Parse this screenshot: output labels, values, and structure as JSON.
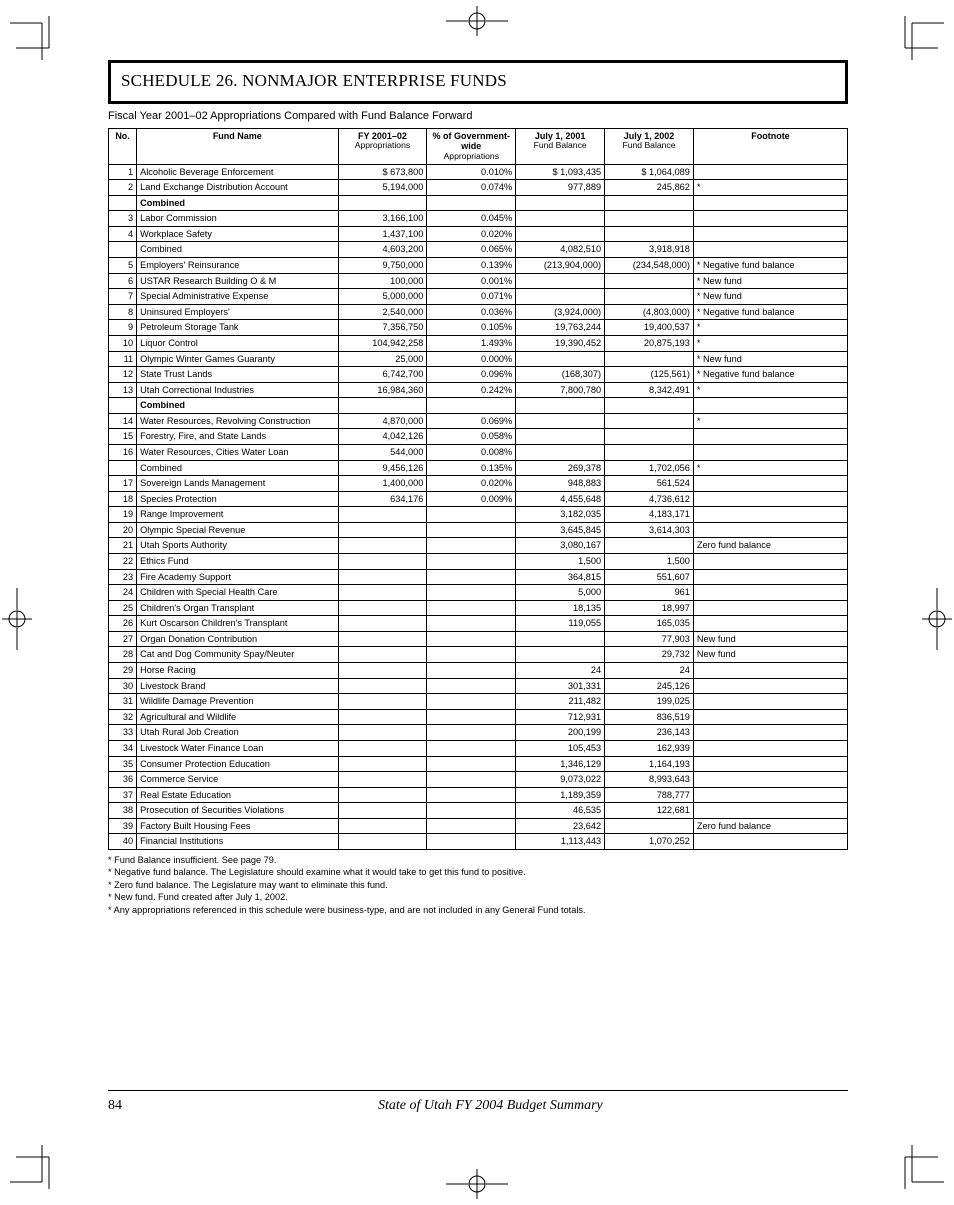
{
  "title": "SCHEDULE 26. NONMAJOR ENTERPRISE FUNDS",
  "subtitle": "Fiscal Year 2001–02 Appropriations Compared with Fund Balance Forward",
  "table": {
    "headers": {
      "no": "No.",
      "name": "Fund Name",
      "fy": {
        "main": "FY 2001–02",
        "sub": "Appropriations"
      },
      "pct": {
        "main": "% of Government-wide",
        "sub": "Appropriations"
      },
      "jul01": {
        "main": "July 1, 2001",
        "sub": "Fund Balance"
      },
      "jul02": {
        "main": "July 1, 2002",
        "sub": "Fund Balance"
      },
      "fn": "Footnote"
    },
    "rows": [
      {
        "no": "1",
        "name": "Alcoholic Beverage Enforcement",
        "fy": "$    673,800",
        "pct": "0.010%",
        "jul01": "$    1,093,435",
        "jul02": "$    1,064,089",
        "fn": "",
        "ast": ""
      },
      {
        "no": "2",
        "name": "Land Exchange Distribution Account",
        "fy": "5,194,000",
        "pct": "0.074%",
        "jul01": "977,889",
        "jul02": "245,862",
        "fn": "",
        "ast": "*"
      },
      {
        "no": "",
        "name": "Combined",
        "fy": "",
        "pct": "",
        "jul01": "",
        "jul02": "",
        "fn": "",
        "ast": "",
        "group": "head"
      },
      {
        "no": "3",
        "name": "Labor Commission",
        "fy": "3,166,100",
        "pct": "0.045%",
        "jul01": "",
        "jul02": "",
        "fn": "",
        "ast": ""
      },
      {
        "no": "4",
        "name": "Workplace Safety",
        "fy": "1,437,100",
        "pct": "0.020%",
        "jul01": "",
        "jul02": "",
        "fn": "",
        "ast": ""
      },
      {
        "no": "",
        "name": "Combined",
        "fy": "4,603,200",
        "pct": "0.065%",
        "jul01": "4,082,510",
        "jul02": "3,918,918",
        "fn": "",
        "ast": "",
        "group": "total"
      },
      {
        "no": "5",
        "name": "Employers' Reinsurance",
        "fy": "9,750,000",
        "pct": "0.139%",
        "jul01": "(213,904,000)",
        "jul02": "(234,548,000)",
        "fn": "Negative fund balance",
        "ast": "*"
      },
      {
        "no": "6",
        "name": "USTAR Research Building O & M",
        "fy": "100,000",
        "pct": "0.001%",
        "jul01": "",
        "jul02": "",
        "fn": "New fund",
        "ast": "*"
      },
      {
        "no": "7",
        "name": "Special Administrative Expense",
        "fy": "5,000,000",
        "pct": "0.071%",
        "jul01": "",
        "jul02": "",
        "fn": "New fund",
        "ast": "*"
      },
      {
        "no": "8",
        "name": "Uninsured Employers'",
        "fy": "2,540,000",
        "pct": "0.036%",
        "jul01": "(3,924,000)",
        "jul02": "(4,803,000)",
        "fn": "Negative fund balance",
        "ast": "*"
      },
      {
        "no": "9",
        "name": "Petroleum Storage Tank",
        "fy": "7,356,750",
        "pct": "0.105%",
        "jul01": "19,763,244",
        "jul02": "19,400,537",
        "fn": "",
        "ast": "*"
      },
      {
        "no": "10",
        "name": "Liquor Control",
        "fy": "104,942,258",
        "pct": "1.493%",
        "jul01": "19,390,452",
        "jul02": "20,875,193",
        "fn": "",
        "ast": "*"
      },
      {
        "no": "11",
        "name": "Olympic Winter Games Guaranty",
        "fy": "25,000",
        "pct": "0.000%",
        "jul01": "",
        "jul02": "",
        "fn": "New fund",
        "ast": "*"
      },
      {
        "no": "12",
        "name": "State Trust Lands",
        "fy": "6,742,700",
        "pct": "0.096%",
        "jul01": "(168,307)",
        "jul02": "(125,561)",
        "fn": "Negative fund balance",
        "ast": "*"
      },
      {
        "no": "13",
        "name": "Utah Correctional Industries",
        "fy": "16,984,360",
        "pct": "0.242%",
        "jul01": "7,800,780",
        "jul02": "8,342,491",
        "fn": "",
        "ast": "*"
      },
      {
        "no": "",
        "name": "Combined",
        "fy": "",
        "pct": "",
        "jul01": "",
        "jul02": "",
        "fn": "",
        "ast": "",
        "group": "head"
      },
      {
        "no": "14",
        "name": "Water Resources, Revolving Construction",
        "fy": "4,870,000",
        "pct": "0.069%",
        "jul01": "",
        "jul02": "",
        "fn": "",
        "ast": "*"
      },
      {
        "no": "15",
        "name": "Forestry, Fire, and State Lands",
        "fy": "4,042,126",
        "pct": "0.058%",
        "jul01": "",
        "jul02": "",
        "fn": "",
        "ast": ""
      },
      {
        "no": "16",
        "name": "Water Resources, Cities Water Loan",
        "fy": "544,000",
        "pct": "0.008%",
        "jul01": "",
        "jul02": "",
        "fn": "",
        "ast": ""
      },
      {
        "no": "",
        "name": "Combined",
        "fy": "9,456,126",
        "pct": "0.135%",
        "jul01": "269,378",
        "jul02": "1,702,056",
        "fn": "",
        "ast": "*",
        "group": "total"
      },
      {
        "no": "17",
        "name": "Sovereign Lands Management",
        "fy": "1,400,000",
        "pct": "0.020%",
        "jul01": "948,883",
        "jul02": "561,524",
        "fn": "",
        "ast": ""
      },
      {
        "no": "18",
        "name": "Species Protection",
        "fy": "634,176",
        "pct": "0.009%",
        "jul01": "4,455,648",
        "jul02": "4,736,612",
        "fn": "",
        "ast": ""
      },
      {
        "no": "19",
        "name": "Range Improvement",
        "fy": "",
        "pct": "",
        "jul01": "3,182,035",
        "jul02": "4,183,171",
        "fn": "",
        "ast": ""
      },
      {
        "no": "20",
        "name": "Olympic Special Revenue",
        "fy": "",
        "pct": "",
        "jul01": "3,645,845",
        "jul02": "3,614,303",
        "fn": "",
        "ast": ""
      },
      {
        "no": "21",
        "name": "Utah Sports Authority",
        "fy": "",
        "pct": "",
        "jul01": "3,080,167",
        "jul02": "",
        "fn": "Zero fund balance",
        "ast": ""
      },
      {
        "no": "22",
        "name": "Ethics Fund",
        "fy": "",
        "pct": "",
        "jul01": "1,500",
        "jul02": "1,500",
        "fn": "",
        "ast": ""
      },
      {
        "no": "23",
        "name": "Fire Academy Support",
        "fy": "",
        "pct": "",
        "jul01": "364,815",
        "jul02": "551,607",
        "fn": "",
        "ast": ""
      },
      {
        "no": "24",
        "name": "Children with Special Health Care",
        "fy": "",
        "pct": "",
        "jul01": "5,000",
        "jul02": "961",
        "fn": "",
        "ast": ""
      },
      {
        "no": "25",
        "name": "Children's Organ Transplant",
        "fy": "",
        "pct": "",
        "jul01": "18,135",
        "jul02": "18,997",
        "fn": "",
        "ast": ""
      },
      {
        "no": "26",
        "name": "Kurt Oscarson Children's Transplant",
        "fy": "",
        "pct": "",
        "jul01": "119,055",
        "jul02": "165,035",
        "fn": "",
        "ast": ""
      },
      {
        "no": "27",
        "name": "Organ Donation Contribution",
        "fy": "",
        "pct": "",
        "jul01": "",
        "jul02": "77,903",
        "fn": "New fund",
        "ast": ""
      },
      {
        "no": "28",
        "name": "Cat and Dog Community Spay/Neuter",
        "fy": "",
        "pct": "",
        "jul01": "",
        "jul02": "29,732",
        "fn": "New fund",
        "ast": ""
      },
      {
        "no": "29",
        "name": "Horse Racing",
        "fy": "",
        "pct": "",
        "jul01": "24",
        "jul02": "24",
        "fn": "",
        "ast": ""
      },
      {
        "no": "30",
        "name": "Livestock Brand",
        "fy": "",
        "pct": "",
        "jul01": "301,331",
        "jul02": "245,126",
        "fn": "",
        "ast": ""
      },
      {
        "no": "31",
        "name": "Wildlife Damage Prevention",
        "fy": "",
        "pct": "",
        "jul01": "211,482",
        "jul02": "199,025",
        "fn": "",
        "ast": ""
      },
      {
        "no": "32",
        "name": "Agricultural and Wildlife",
        "fy": "",
        "pct": "",
        "jul01": "712,931",
        "jul02": "836,519",
        "fn": "",
        "ast": ""
      },
      {
        "no": "33",
        "name": "Utah Rural Job Creation",
        "fy": "",
        "pct": "",
        "jul01": "200,199",
        "jul02": "236,143",
        "fn": "",
        "ast": ""
      },
      {
        "no": "34",
        "name": "Livestock Water Finance Loan",
        "fy": "",
        "pct": "",
        "jul01": "105,453",
        "jul02": "162,939",
        "fn": "",
        "ast": ""
      },
      {
        "no": "35",
        "name": "Consumer Protection Education",
        "fy": "",
        "pct": "",
        "jul01": "1,346,129",
        "jul02": "1,164,193",
        "fn": "",
        "ast": ""
      },
      {
        "no": "36",
        "name": "Commerce Service",
        "fy": "",
        "pct": "",
        "jul01": "9,073,022",
        "jul02": "8,993,643",
        "fn": "",
        "ast": ""
      },
      {
        "no": "37",
        "name": "Real Estate Education",
        "fy": "",
        "pct": "",
        "jul01": "1,189,359",
        "jul02": "788,777",
        "fn": "",
        "ast": ""
      },
      {
        "no": "38",
        "name": "Prosecution of Securities Violations",
        "fy": "",
        "pct": "",
        "jul01": "46,535",
        "jul02": "122,681",
        "fn": "",
        "ast": ""
      },
      {
        "no": "39",
        "name": "Factory Built Housing Fees",
        "fy": "",
        "pct": "",
        "jul01": "23,642",
        "jul02": "",
        "fn": "Zero fund balance",
        "ast": ""
      },
      {
        "no": "40",
        "name": "Financial Institutions",
        "fy": "",
        "pct": "",
        "jul01": "1,113,443",
        "jul02": "1,070,252",
        "fn": "",
        "ast": ""
      }
    ]
  },
  "footnotes": [
    {
      "mark": "*",
      "text": "Fund Balance insufficient. See page 79."
    },
    {
      "mark": "*",
      "text": "Negative fund balance. The Legislature should examine what it would take to get this fund to positive."
    },
    {
      "mark": "*",
      "text": "Zero fund balance. The Legislature may want to eliminate this fund."
    },
    {
      "mark": "*",
      "text": "New fund. Fund created after July 1, 2002."
    },
    {
      "mark": "*",
      "text": "Any appropriations referenced in this schedule were business-type, and are not included in any General Fund totals."
    }
  ],
  "footer": {
    "page": "84",
    "label": "State of Utah FY 2004 Budget Summary"
  }
}
